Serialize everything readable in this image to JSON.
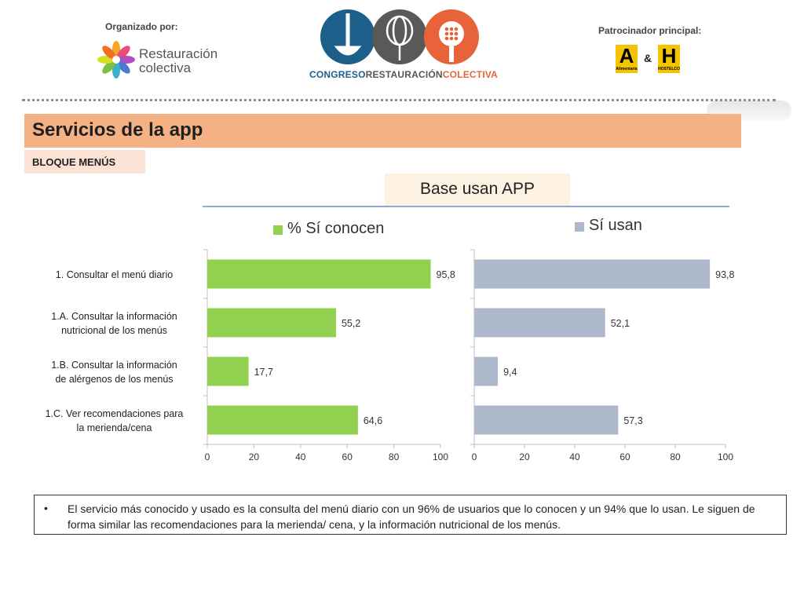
{
  "header": {
    "organized_label": "Organizado por:",
    "organizer_name_line1": "Restauración",
    "organizer_name_line2": "colectiva",
    "congress_name": [
      "CONGRESO",
      "RESTAURACIÓN",
      "COLECTIVA"
    ],
    "sponsor_label": "Patrocinador principal:",
    "sponsor_left_letter": "A",
    "sponsor_left_sub": "Alimentaria",
    "sponsor_amp": "&",
    "sponsor_right_letter": "H",
    "sponsor_right_sub": "HOSTELCO"
  },
  "slide": {
    "title": "Servicios de la app",
    "section": "BLOQUE MENÚS",
    "base_label": "Base usan APP",
    "bullet": "El servicio más conocido y usado es la consulta del menú diario con un 96% de usuarios que lo conocen y un 94% que lo usan. Le siguen de forma similar las recomendaciones para la merienda/ cena, y la información nutricional de los menús."
  },
  "colors": {
    "known": "#92d050",
    "used": "#adb9ca",
    "title_bar": "#f4b183",
    "section_tag": "#fbe2d4"
  },
  "chart_data": [
    {
      "type": "bar",
      "orientation": "horizontal",
      "categories": [
        "1. Consultar el menú diario",
        "1.A. Consultar la información nutricional de los menús",
        "1.B. Consultar la información de alérgenos de los menús",
        "1.C. Ver recomendaciones para la merienda/cena"
      ],
      "series": [
        {
          "name": "% Sí conocen",
          "values": [
            95.8,
            55.2,
            17.7,
            64.6
          ]
        }
      ],
      "data_labels": [
        "95,8",
        "55,2",
        "17,7",
        "64,6"
      ],
      "xlim": [
        0,
        100
      ],
      "xticks": [
        "0",
        "20",
        "40",
        "60",
        "80",
        "100"
      ],
      "legend": "top"
    },
    {
      "type": "bar",
      "orientation": "horizontal",
      "categories": [
        "1. Consultar el menú diario",
        "1.A. Consultar la información nutricional de los menús",
        "1.B. Consultar la información de alérgenos de los menús",
        "1.C. Ver recomendaciones para la merienda/cena"
      ],
      "series": [
        {
          "name": "Sí usan",
          "values": [
            93.8,
            52.1,
            9.4,
            57.3
          ]
        }
      ],
      "data_labels": [
        "93,8",
        "52,1",
        "9,4",
        "57,3"
      ],
      "xlim": [
        0,
        100
      ],
      "xticks": [
        "0",
        "20",
        "40",
        "60",
        "80",
        "100"
      ],
      "legend": "top"
    }
  ],
  "category_labels": [
    [
      "1. Consultar el menú diario"
    ],
    [
      "1.A. Consultar la información",
      "nutricional de los menús"
    ],
    [
      "1.B. Consultar la información",
      "de alérgenos de los menús"
    ],
    [
      "1.C. Ver recomendaciones para",
      "la merienda/cena"
    ]
  ]
}
